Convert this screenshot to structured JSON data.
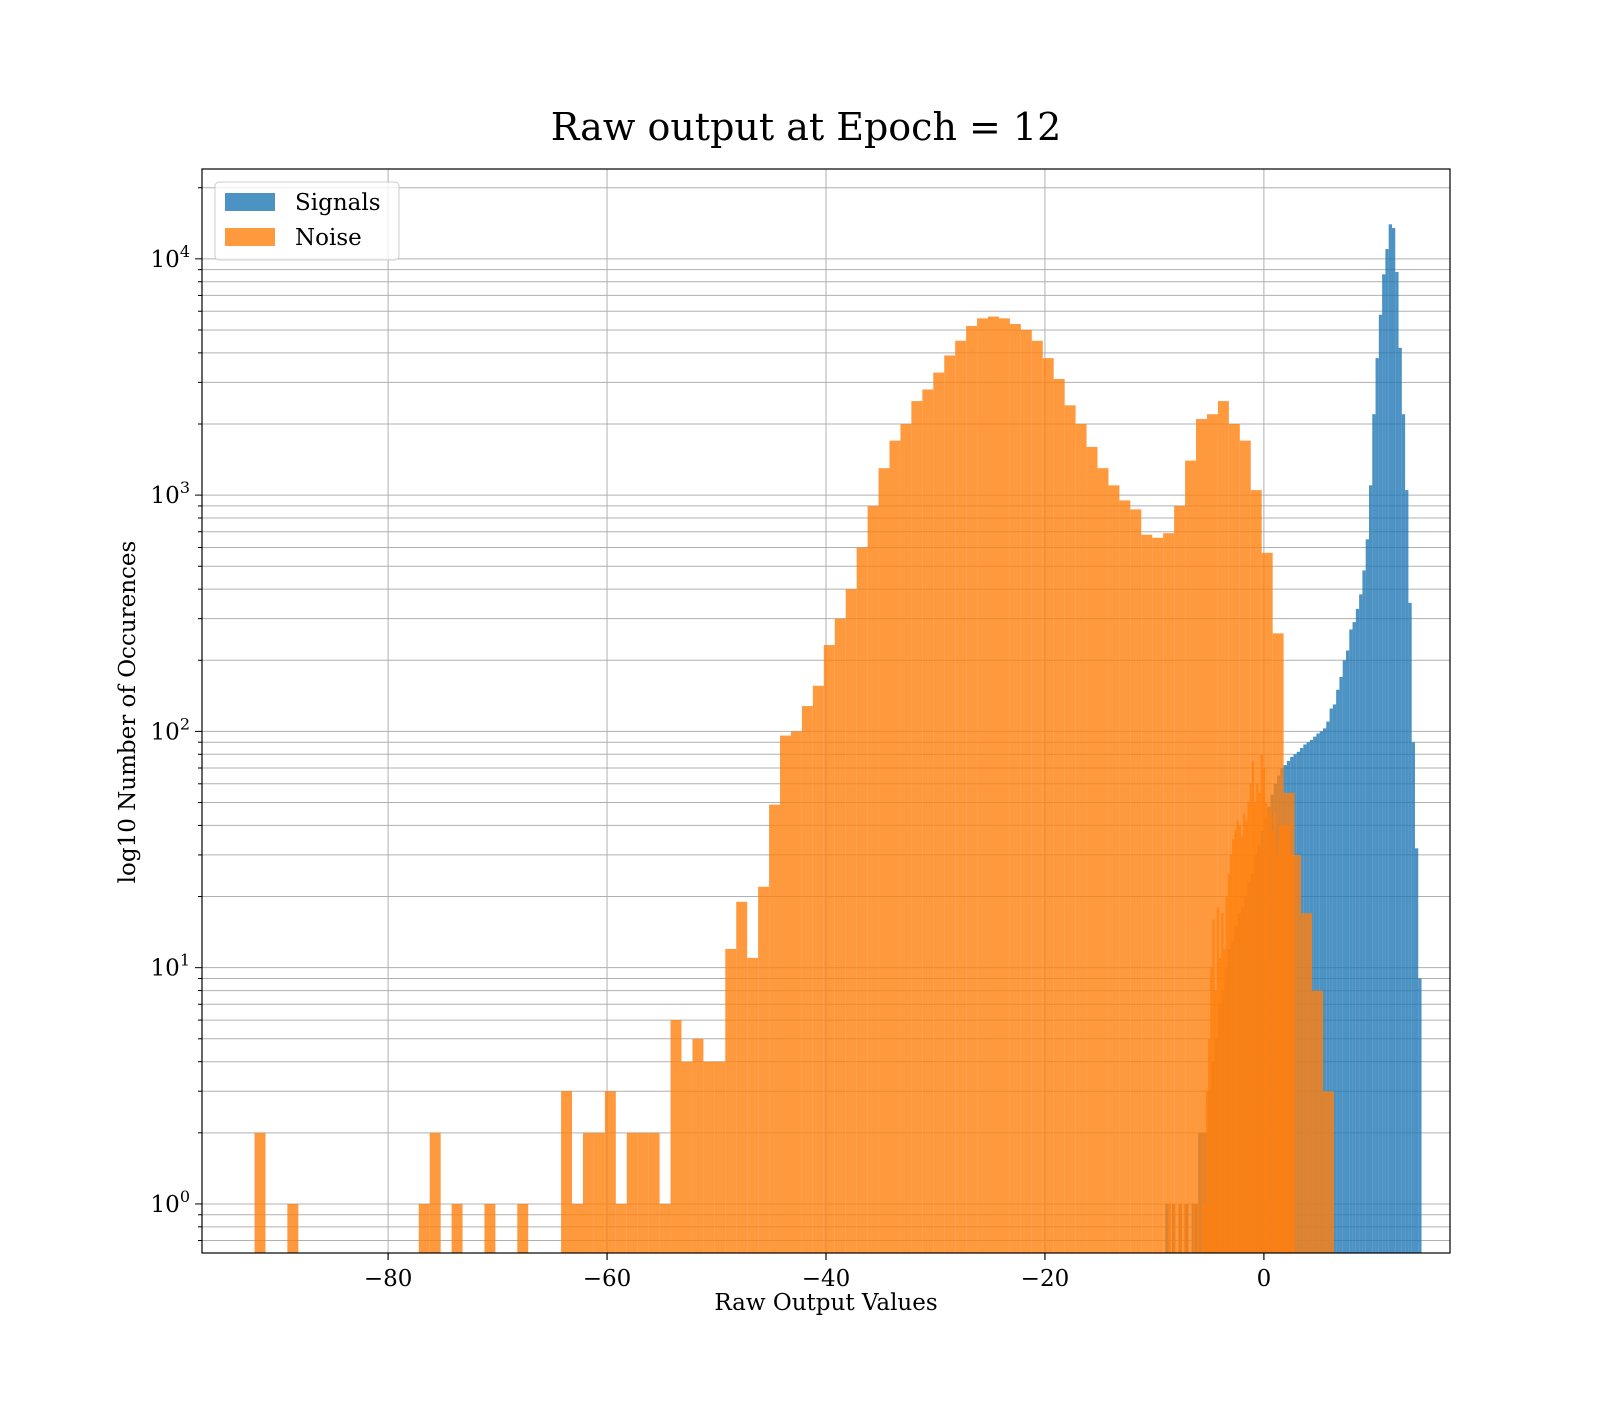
{
  "chart_data": {
    "type": "bar",
    "title": "Raw output at Epoch = 12",
    "xlabel": "Raw Output Values",
    "ylabel": "log10 Number of Occurences",
    "xlim": [
      -97,
      17
    ],
    "ylim": [
      0.62,
      24000
    ],
    "yscale": "log",
    "grid": true,
    "legend_position": "top-left",
    "xticks": [
      {
        "value": -80,
        "label": "−80"
      },
      {
        "value": -60,
        "label": "−60"
      },
      {
        "value": -40,
        "label": "−40"
      },
      {
        "value": -20,
        "label": "−20"
      },
      {
        "value": 0,
        "label": "0"
      }
    ],
    "yticks": [
      {
        "value": 1,
        "base": "10",
        "exp": "0"
      },
      {
        "value": 10,
        "base": "10",
        "exp": "1"
      },
      {
        "value": 100,
        "base": "10",
        "exp": "2"
      },
      {
        "value": 1000,
        "base": "10",
        "exp": "3"
      },
      {
        "value": 10000,
        "base": "10",
        "exp": "4"
      }
    ],
    "series": [
      {
        "name": "Signals",
        "color": "#1f77b4",
        "opacity": 0.8,
        "bin_start": -9.0,
        "bin_width": 0.3,
        "counts": [
          1,
          0,
          1,
          0,
          1,
          0,
          1,
          0,
          1,
          1,
          2,
          2,
          2,
          3,
          4,
          5,
          7,
          8,
          10,
          12,
          13,
          15,
          17,
          18,
          20,
          23,
          25,
          30,
          33,
          38,
          43,
          48,
          54,
          60,
          65,
          70,
          72,
          75,
          78,
          80,
          82,
          85,
          88,
          90,
          92,
          95,
          98,
          100,
          103,
          110,
          125,
          130,
          150,
          170,
          200,
          220,
          270,
          290,
          330,
          380,
          480,
          650,
          1100,
          2200,
          3800,
          5800,
          8600,
          11000,
          14000,
          13500,
          8800,
          4200,
          2200,
          1050,
          350,
          90,
          32,
          9
        ]
      },
      {
        "name": "Noise",
        "color": "#ff7f0e",
        "opacity": 0.8,
        "bin_start": -92.2,
        "bin_width": 1.0,
        "counts": [
          2,
          0,
          0,
          1,
          0,
          0,
          0,
          0,
          0,
          0,
          0,
          0,
          0,
          0,
          0,
          1,
          2,
          0,
          1,
          0,
          0,
          1,
          0,
          0,
          1,
          0,
          0,
          0,
          3,
          1,
          2,
          2,
          3,
          1,
          2,
          2,
          2,
          1,
          6,
          4,
          5,
          4,
          4,
          12,
          19,
          11,
          22,
          49,
          96,
          100,
          128,
          156,
          232,
          300,
          400,
          600,
          900,
          1300,
          1700,
          2000,
          2500,
          2800,
          3300,
          3900,
          4500,
          5200,
          5600,
          5700,
          5600,
          5300,
          5000,
          4500,
          3800,
          3100,
          2400,
          2000,
          1600,
          1300,
          1100,
          950,
          870,
          680,
          660,
          690,
          900,
          1400,
          2100,
          2200,
          2500,
          2000,
          1700,
          1050,
          570,
          260,
          55,
          0
        ]
      },
      {
        "name": "",
        "color": "#ff7f0e",
        "opacity": 0.8,
        "bin_start": -8.7,
        "bin_width": 0.2,
        "counts": [
          1,
          0,
          1,
          0,
          0,
          1,
          0,
          1,
          0,
          0,
          0,
          1,
          0,
          1,
          0,
          2,
          1,
          3,
          5,
          10,
          16,
          8,
          18,
          11,
          17,
          12,
          20,
          25,
          30,
          35,
          38,
          42,
          40,
          36,
          45,
          42,
          50,
          60,
          75,
          50,
          60,
          55,
          80,
          70,
          50,
          45,
          48,
          38,
          45,
          30,
          35
        ]
      },
      {
        "name": "",
        "color": "#ff7f0e",
        "opacity": 0.8,
        "bin_start": 1.4,
        "bin_width": 1.0,
        "counts": [
          40,
          30,
          17,
          8,
          3
        ]
      }
    ]
  }
}
